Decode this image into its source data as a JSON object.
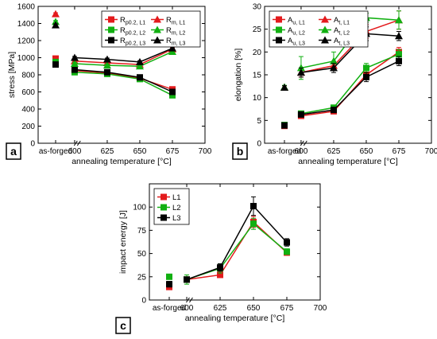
{
  "colors": {
    "L1": "#e31a1c",
    "L2": "#11b011",
    "L3": "#000000"
  },
  "chart_data": [
    {
      "panel_label": "a",
      "type": "scatter",
      "xlabel": "annealing temperature [°C]",
      "ylabel": "stress [MPa]",
      "ylim": [
        0,
        1600
      ],
      "yticks": [
        "0",
        "200",
        "400",
        "600",
        "800",
        "1000",
        "1200",
        "1400",
        "1600"
      ],
      "xticks": [
        "600",
        "625",
        "650",
        "675",
        "700"
      ],
      "categorical_label": "as-forged",
      "legend": {
        "placement": "top-right",
        "entries": [
          {
            "base": "R",
            "sub": "p0.2, L1",
            "marker": "square",
            "color": "L1"
          },
          {
            "base": "R",
            "sub": "m, L1",
            "marker": "triangle",
            "color": "L1"
          },
          {
            "base": "R",
            "sub": "p0.2, L2",
            "marker": "square",
            "color": "L2"
          },
          {
            "base": "R",
            "sub": "m, L2",
            "marker": "triangle",
            "color": "L2"
          },
          {
            "base": "R",
            "sub": "p0.2, L3",
            "marker": "square",
            "color": "L3"
          },
          {
            "base": "R",
            "sub": "m, L3",
            "marker": "triangle",
            "color": "L3"
          }
        ]
      },
      "x": [
        600,
        625,
        650,
        675
      ],
      "series": [
        {
          "marker": "square",
          "color": "L1",
          "asforged": 990,
          "asforged_err": 15,
          "values": [
            850,
            820,
            760,
            630
          ],
          "err": [
            15,
            15,
            15,
            15
          ]
        },
        {
          "marker": "square",
          "color": "L2",
          "asforged": 950,
          "asforged_err": 15,
          "values": [
            830,
            810,
            750,
            560
          ],
          "err": [
            15,
            15,
            15,
            20
          ]
        },
        {
          "marker": "square",
          "color": "L3",
          "asforged": 920,
          "asforged_err": 15,
          "values": [
            860,
            830,
            770,
            600
          ],
          "err": [
            15,
            15,
            15,
            20
          ]
        },
        {
          "marker": "triangle",
          "color": "L1",
          "asforged": 1510,
          "asforged_err": 15,
          "values": [
            960,
            940,
            920,
            1100
          ],
          "err": [
            15,
            15,
            15,
            15
          ]
        },
        {
          "marker": "triangle",
          "color": "L2",
          "asforged": 1420,
          "asforged_err": 15,
          "values": [
            930,
            910,
            900,
            1070
          ],
          "err": [
            15,
            15,
            15,
            20
          ]
        },
        {
          "marker": "triangle",
          "color": "L3",
          "asforged": 1380,
          "asforged_err": 15,
          "values": [
            1000,
            980,
            950,
            1110
          ],
          "err": [
            15,
            15,
            15,
            15
          ]
        }
      ]
    },
    {
      "panel_label": "b",
      "type": "scatter",
      "xlabel": "annealing temperature [°C]",
      "ylabel": "elongation [%]",
      "ylim": [
        0,
        30
      ],
      "yticks": [
        "0",
        "5",
        "10",
        "15",
        "20",
        "25",
        "30"
      ],
      "xticks": [
        "600",
        "625",
        "650",
        "675",
        "700"
      ],
      "categorical_label": "as-forged",
      "legend": {
        "placement": "top-left",
        "entries": [
          {
            "base": "A",
            "sub": "u, L1",
            "marker": "square",
            "color": "L1"
          },
          {
            "base": "A",
            "sub": "t, L1",
            "marker": "triangle",
            "color": "L1"
          },
          {
            "base": "A",
            "sub": "u, L2",
            "marker": "square",
            "color": "L2"
          },
          {
            "base": "A",
            "sub": "t, L2",
            "marker": "triangle",
            "color": "L2"
          },
          {
            "base": "A",
            "sub": "u, L3",
            "marker": "square",
            "color": "L3"
          },
          {
            "base": "A",
            "sub": "t, L3",
            "marker": "triangle",
            "color": "L3"
          }
        ]
      },
      "x": [
        600,
        625,
        650,
        675
      ],
      "series": [
        {
          "marker": "square",
          "color": "L1",
          "asforged": 3.8,
          "asforged_err": 0.3,
          "values": [
            6.0,
            7.0,
            15.0,
            20.0
          ],
          "err": [
            0.5,
            0.5,
            1.0,
            1.0
          ]
        },
        {
          "marker": "square",
          "color": "L2",
          "asforged": 4.0,
          "asforged_err": 0.3,
          "values": [
            6.5,
            7.8,
            16.5,
            19.5
          ],
          "err": [
            0.5,
            0.5,
            1.0,
            1.0
          ]
        },
        {
          "marker": "square",
          "color": "L3",
          "asforged": 3.9,
          "asforged_err": 0.3,
          "values": [
            6.3,
            7.3,
            14.5,
            18.0
          ],
          "err": [
            0.5,
            0.5,
            1.0,
            1.0
          ]
        },
        {
          "marker": "triangle",
          "color": "L1",
          "asforged": 12.2,
          "asforged_err": 0.4,
          "values": [
            15.5,
            17.0,
            24.5,
            27.0
          ],
          "err": [
            1.0,
            1.0,
            1.5,
            2.0
          ]
        },
        {
          "marker": "triangle",
          "color": "L2",
          "asforged": 12.3,
          "asforged_err": 0.4,
          "values": [
            16.5,
            18.0,
            27.5,
            27.0
          ],
          "err": [
            2.5,
            2.0,
            1.0,
            2.0
          ]
        },
        {
          "marker": "triangle",
          "color": "L3",
          "asforged": 12.2,
          "asforged_err": 0.4,
          "values": [
            15.5,
            16.5,
            24.0,
            23.5
          ],
          "err": [
            1.0,
            1.0,
            1.5,
            1.0
          ]
        }
      ]
    },
    {
      "panel_label": "c",
      "type": "scatter",
      "xlabel": "annealing temperature [°C]",
      "ylabel": "impact energy [J]",
      "ylim": [
        0,
        125
      ],
      "yticks": [
        "0",
        "25",
        "50",
        "75",
        "100"
      ],
      "xticks": [
        "600",
        "625",
        "650",
        "675",
        "700"
      ],
      "categorical_label": "as-forged",
      "legend": {
        "placement": "top-left",
        "entries": [
          {
            "base": "L1",
            "sub": "",
            "marker": "square",
            "color": "L1"
          },
          {
            "base": "L2",
            "sub": "",
            "marker": "square",
            "color": "L2"
          },
          {
            "base": "L3",
            "sub": "",
            "marker": "square",
            "color": "L3"
          }
        ]
      },
      "x": [
        600,
        625,
        650,
        675
      ],
      "series": [
        {
          "marker": "square",
          "color": "L1",
          "asforged": 14,
          "asforged_err": 2,
          "values": [
            22,
            27,
            84,
            51
          ],
          "err": [
            2,
            2,
            6,
            3
          ]
        },
        {
          "marker": "square",
          "color": "L2",
          "asforged": 25,
          "asforged_err": 2,
          "values": [
            22,
            34,
            82,
            52
          ],
          "err": [
            5,
            5,
            6,
            3
          ]
        },
        {
          "marker": "square",
          "color": "L3",
          "asforged": 17,
          "asforged_err": 3,
          "values": [
            22,
            35,
            101,
            62
          ],
          "err": [
            2,
            4,
            10,
            4
          ]
        }
      ]
    }
  ]
}
